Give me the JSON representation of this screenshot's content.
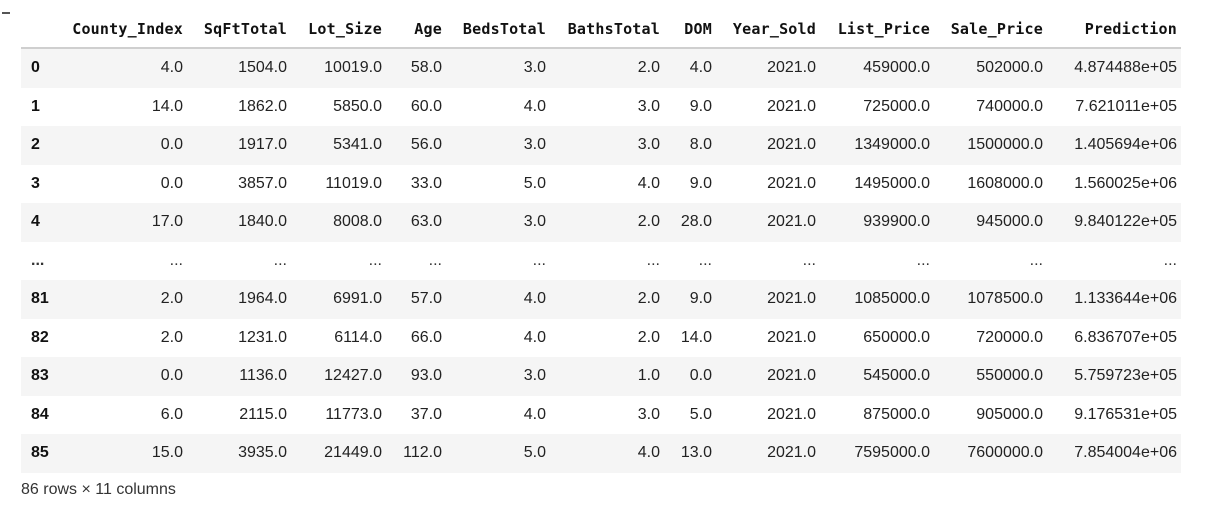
{
  "table": {
    "index_header": "",
    "columns": [
      "County_Index",
      "SqFtTotal",
      "Lot_Size",
      "Age",
      "BedsTotal",
      "BathsTotal",
      "DOM",
      "Year_Sold",
      "List_Price",
      "Sale_Price",
      "Prediction"
    ],
    "rows": [
      {
        "index": "0",
        "cells": [
          "4.0",
          "1504.0",
          "10019.0",
          "58.0",
          "3.0",
          "2.0",
          "4.0",
          "2021.0",
          "459000.0",
          "502000.0",
          "4.874488e+05"
        ]
      },
      {
        "index": "1",
        "cells": [
          "14.0",
          "1862.0",
          "5850.0",
          "60.0",
          "4.0",
          "3.0",
          "9.0",
          "2021.0",
          "725000.0",
          "740000.0",
          "7.621011e+05"
        ]
      },
      {
        "index": "2",
        "cells": [
          "0.0",
          "1917.0",
          "5341.0",
          "56.0",
          "3.0",
          "3.0",
          "8.0",
          "2021.0",
          "1349000.0",
          "1500000.0",
          "1.405694e+06"
        ]
      },
      {
        "index": "3",
        "cells": [
          "0.0",
          "3857.0",
          "11019.0",
          "33.0",
          "5.0",
          "4.0",
          "9.0",
          "2021.0",
          "1495000.0",
          "1608000.0",
          "1.560025e+06"
        ]
      },
      {
        "index": "4",
        "cells": [
          "17.0",
          "1840.0",
          "8008.0",
          "63.0",
          "3.0",
          "2.0",
          "28.0",
          "2021.0",
          "939900.0",
          "945000.0",
          "9.840122e+05"
        ]
      },
      {
        "index": "...",
        "cells": [
          "...",
          "...",
          "...",
          "...",
          "...",
          "...",
          "...",
          "...",
          "...",
          "...",
          "..."
        ]
      },
      {
        "index": "81",
        "cells": [
          "2.0",
          "1964.0",
          "6991.0",
          "57.0",
          "4.0",
          "2.0",
          "9.0",
          "2021.0",
          "1085000.0",
          "1078500.0",
          "1.133644e+06"
        ]
      },
      {
        "index": "82",
        "cells": [
          "2.0",
          "1231.0",
          "6114.0",
          "66.0",
          "4.0",
          "2.0",
          "14.0",
          "2021.0",
          "650000.0",
          "720000.0",
          "6.836707e+05"
        ]
      },
      {
        "index": "83",
        "cells": [
          "0.0",
          "1136.0",
          "12427.0",
          "93.0",
          "3.0",
          "1.0",
          "0.0",
          "2021.0",
          "545000.0",
          "550000.0",
          "5.759723e+05"
        ]
      },
      {
        "index": "84",
        "cells": [
          "6.0",
          "2115.0",
          "11773.0",
          "37.0",
          "4.0",
          "3.0",
          "5.0",
          "2021.0",
          "875000.0",
          "905000.0",
          "9.176531e+05"
        ]
      },
      {
        "index": "85",
        "cells": [
          "15.0",
          "3935.0",
          "21449.0",
          "112.0",
          "5.0",
          "4.0",
          "13.0",
          "2021.0",
          "7595000.0",
          "7600000.0",
          "7.854004e+06"
        ]
      }
    ]
  },
  "footer": {
    "shape_text": "86 rows × 11 columns"
  }
}
